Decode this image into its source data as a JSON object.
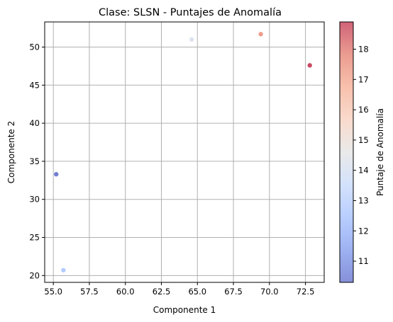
{
  "chart_data": {
    "type": "scatter",
    "title": "Clase: SLSN - Puntajes de Anomalía",
    "xlabel": "Componente 1",
    "ylabel": "Componente 2",
    "xlim": [
      54.4,
      73.8
    ],
    "ylim": [
      19.1,
      53.3
    ],
    "grid": true,
    "xticks": [
      55.0,
      57.5,
      60.0,
      62.5,
      65.0,
      67.5,
      70.0,
      72.5
    ],
    "xtick_labels": [
      "55.0",
      "57.5",
      "60.0",
      "62.5",
      "65.0",
      "67.5",
      "70.0",
      "72.5"
    ],
    "yticks": [
      20,
      25,
      30,
      35,
      40,
      45,
      50
    ],
    "ytick_labels": [
      "20",
      "25",
      "30",
      "35",
      "40",
      "45",
      "50"
    ],
    "colormap": "coolwarm",
    "colorbar": {
      "label": "Puntaje de Anomalía",
      "range": [
        10.3,
        18.9
      ],
      "ticks": [
        11,
        12,
        13,
        14,
        15,
        16,
        17,
        18
      ],
      "tick_labels": [
        "11",
        "12",
        "13",
        "14",
        "15",
        "16",
        "17",
        "18"
      ]
    },
    "points": [
      {
        "x": 55.2,
        "y": 33.3,
        "score": 10.3
      },
      {
        "x": 55.7,
        "y": 20.7,
        "score": 12.7
      },
      {
        "x": 64.6,
        "y": 51.0,
        "score": 14.2
      },
      {
        "x": 69.4,
        "y": 51.7,
        "score": 17.4
      },
      {
        "x": 72.8,
        "y": 47.6,
        "score": 18.9
      }
    ]
  }
}
